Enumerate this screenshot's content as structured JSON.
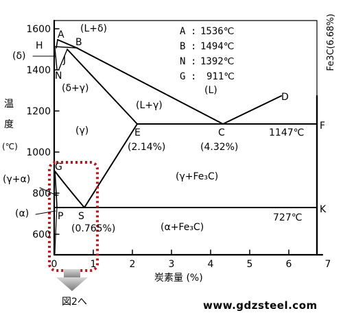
{
  "chart_data": {
    "type": "diagram",
    "x_axis": {
      "label": "炭素量 (%)",
      "ticks": [
        "0",
        "1",
        "2",
        "3",
        "4",
        "5",
        "6",
        "7"
      ],
      "range": [
        0,
        7
      ]
    },
    "y_axis": {
      "label_chars": [
        "温",
        "度",
        "(℃)"
      ],
      "ticks": [
        "1600",
        "1400",
        "1200",
        "1000",
        "800",
        "600"
      ],
      "range": [
        520,
        1640
      ]
    },
    "right_label": "Fe3C(6.68%)",
    "legend": [
      {
        "key": "A",
        "value": "1536℃"
      },
      {
        "key": "B",
        "value": "1494℃"
      },
      {
        "key": "N",
        "value": "1392℃"
      },
      {
        "key": "G",
        "value": "911℃"
      }
    ],
    "points": {
      "A": "A",
      "H": "H",
      "B": "B",
      "J": "J",
      "N": "N",
      "E": "E",
      "E_val": "(2.14%)",
      "C": "C",
      "C_val": "(4.32%)",
      "D": "D",
      "F": "F",
      "F_temp": "1147℃",
      "G": "G",
      "P": "P",
      "S": "S",
      "S_val": "(0.765%)",
      "K": "K",
      "K_temp": "727℃"
    },
    "regions": {
      "L_delta": "(L+δ)",
      "delta": "(δ)",
      "delta_gamma": "(δ+γ)",
      "L": "(L)",
      "L_gamma": "(L+γ)",
      "gamma": "(γ)",
      "gamma_alpha": "(γ+α)",
      "gamma_fe3c": "(γ+Fe₃C)",
      "alpha": "(α)",
      "alpha_fe3c": "(α+Fe₃C)"
    }
  },
  "annotation": {
    "arrow_text": "図2へ"
  },
  "watermark": "www.gdzsteel.com"
}
